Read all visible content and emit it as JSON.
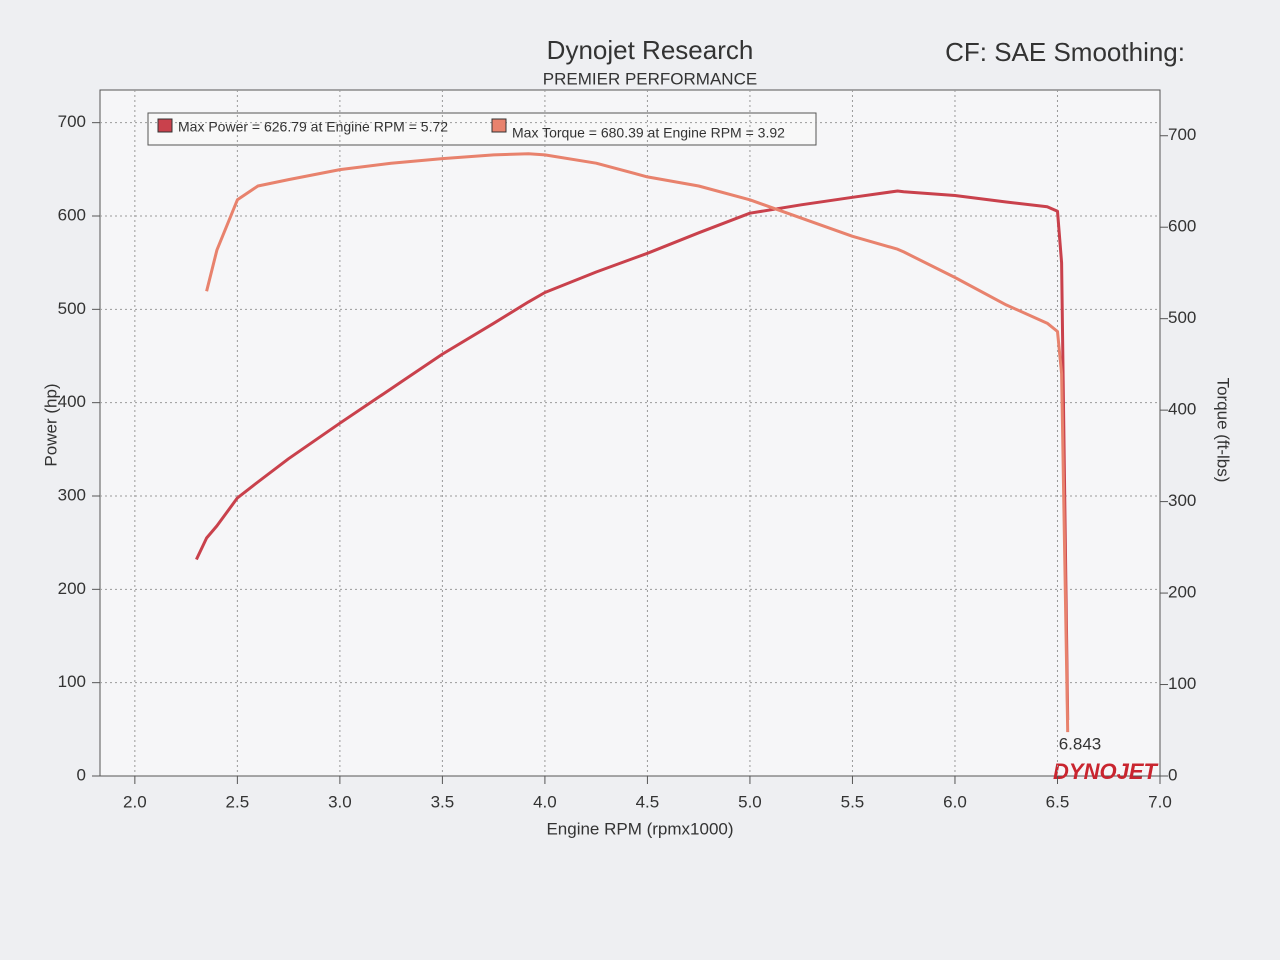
{
  "chart_data": {
    "type": "line",
    "title": "Dynojet Research",
    "subtitle": "PREMIER PERFORMANCE",
    "header_note": "CF: SAE Smoothing:",
    "xlabel": "Engine RPM (rpmx1000)",
    "ylabel": "Power (hp)",
    "y2label": "Torque (ft-lbs)",
    "annotation": "6.843",
    "logo": "DYNOJET",
    "grid": true,
    "x": [
      2.3,
      2.35,
      2.4,
      2.5,
      2.6,
      2.75,
      3.0,
      3.25,
      3.5,
      3.75,
      3.92,
      4.0,
      4.25,
      4.5,
      4.75,
      5.0,
      5.25,
      5.5,
      5.72,
      5.75,
      6.0,
      6.25,
      6.45,
      6.5,
      6.52,
      6.55
    ],
    "series": [
      {
        "name": "Max Power = 626.79 at Engine RPM = 5.72",
        "color": "#c9414c",
        "values": [
          232,
          255,
          268,
          298,
          315,
          340,
          378,
          415,
          452,
          485,
          508,
          518,
          540,
          560,
          582,
          603,
          612,
          620,
          626.79,
          626,
          622,
          615,
          610,
          605,
          550,
          60
        ]
      },
      {
        "name": "Max Torque = 680.39 at Engine RPM = 3.92",
        "color": "#e8826d",
        "axis": "y2",
        "values": [
          null,
          530,
          575,
          630,
          645,
          652,
          663,
          670,
          675,
          679,
          680.39,
          679,
          670,
          655,
          645,
          630,
          610,
          590,
          576,
          573,
          545,
          515,
          495,
          486,
          440,
          48
        ]
      }
    ],
    "xlim": [
      1.83,
      7.0
    ],
    "xticks": [
      {
        "value": 2,
        "label": "2.0"
      },
      2.5,
      {
        "value": 3,
        "label": "3.0"
      },
      3.5,
      {
        "value": 4,
        "label": "4.0"
      },
      4.5,
      {
        "value": 5,
        "label": "5.0"
      },
      5.5,
      {
        "value": 6,
        "label": "6.0"
      },
      6.5,
      {
        "value": 7,
        "label": "7.0"
      }
    ],
    "ylim": [
      0,
      735
    ],
    "yticks": [
      0,
      100,
      200,
      300,
      400,
      500,
      600,
      700
    ],
    "y2lim": [
      0,
      750
    ],
    "y2ticks": [
      0,
      100,
      200,
      300,
      400,
      500,
      600,
      700
    ]
  }
}
